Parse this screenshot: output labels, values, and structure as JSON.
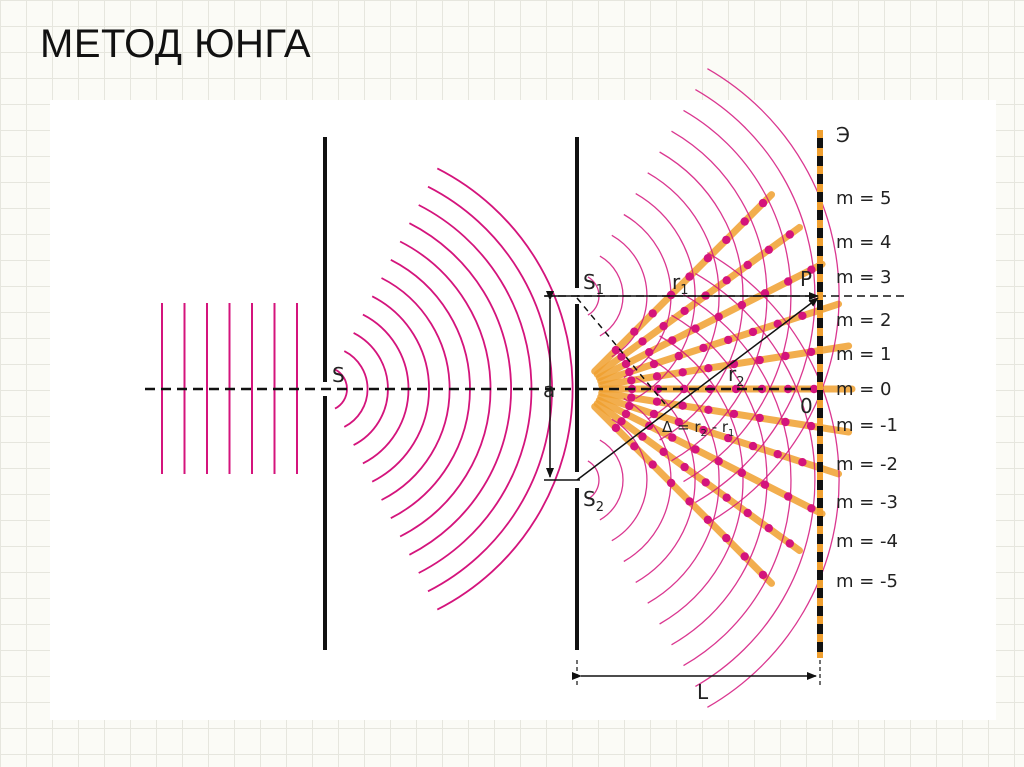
{
  "title": "МЕТОД ЮНГА",
  "labels": {
    "screen": "Э",
    "source": "S",
    "slit1_main": "S",
    "slit1_sub": "1",
    "slit2_main": "S",
    "slit2_sub": "2",
    "point": "P",
    "r1_main": "r",
    "r1_sub": "1",
    "r2_main": "r",
    "r2_sub": "2",
    "separation": "a",
    "center": "0",
    "distance": "L",
    "delta_text": "Δ = r",
    "delta_sub2": "2",
    "delta_minus": " - r",
    "delta_sub1": "1"
  },
  "orders": [
    "m = 5",
    "m = 4",
    "m = 3",
    "m = 2",
    "m = 1",
    "m = 0",
    "m = -1",
    "m = -2",
    "m = -3",
    "m = -4",
    "m = -5"
  ],
  "colors": {
    "wave": "#d4147c",
    "fringe": "#f0a030",
    "line": "#111111"
  }
}
